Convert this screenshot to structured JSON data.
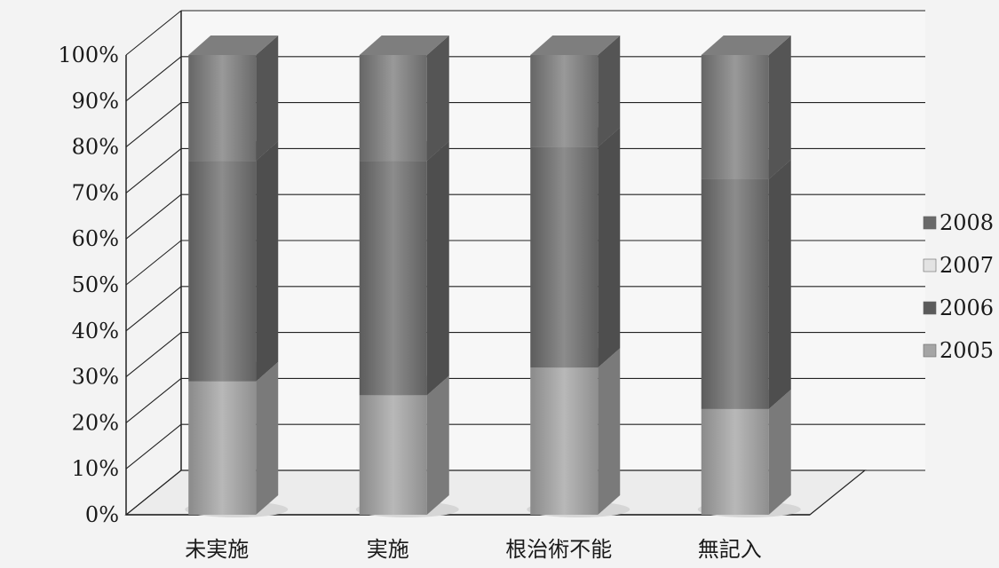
{
  "chart_data": {
    "type": "bar",
    "stacked": true,
    "percent_stacked": true,
    "three_d": true,
    "categories": [
      "未実施",
      "実施",
      "根治術不能",
      "無記入"
    ],
    "series": [
      {
        "name": "2005",
        "values": [
          29,
          26,
          32,
          23
        ],
        "color": "#9a9a9a"
      },
      {
        "name": "2006",
        "values": [
          48,
          51,
          48,
          50
        ],
        "color": "#6e6e6e"
      },
      {
        "name": "2007",
        "values": [
          0,
          0,
          0,
          0
        ],
        "color": "#d8d8d8"
      },
      {
        "name": "2008",
        "values": [
          23,
          23,
          20,
          27
        ],
        "color": "#777777"
      }
    ],
    "ylim": [
      0,
      100
    ],
    "y_ticks": [
      "0%",
      "10%",
      "20%",
      "30%",
      "40%",
      "50%",
      "60%",
      "70%",
      "80%",
      "90%",
      "100%"
    ],
    "legend": [
      "2008",
      "2007",
      "2006",
      "2005"
    ],
    "legend_position": "right",
    "grid": true,
    "title": "",
    "xlabel": "",
    "ylabel": ""
  }
}
